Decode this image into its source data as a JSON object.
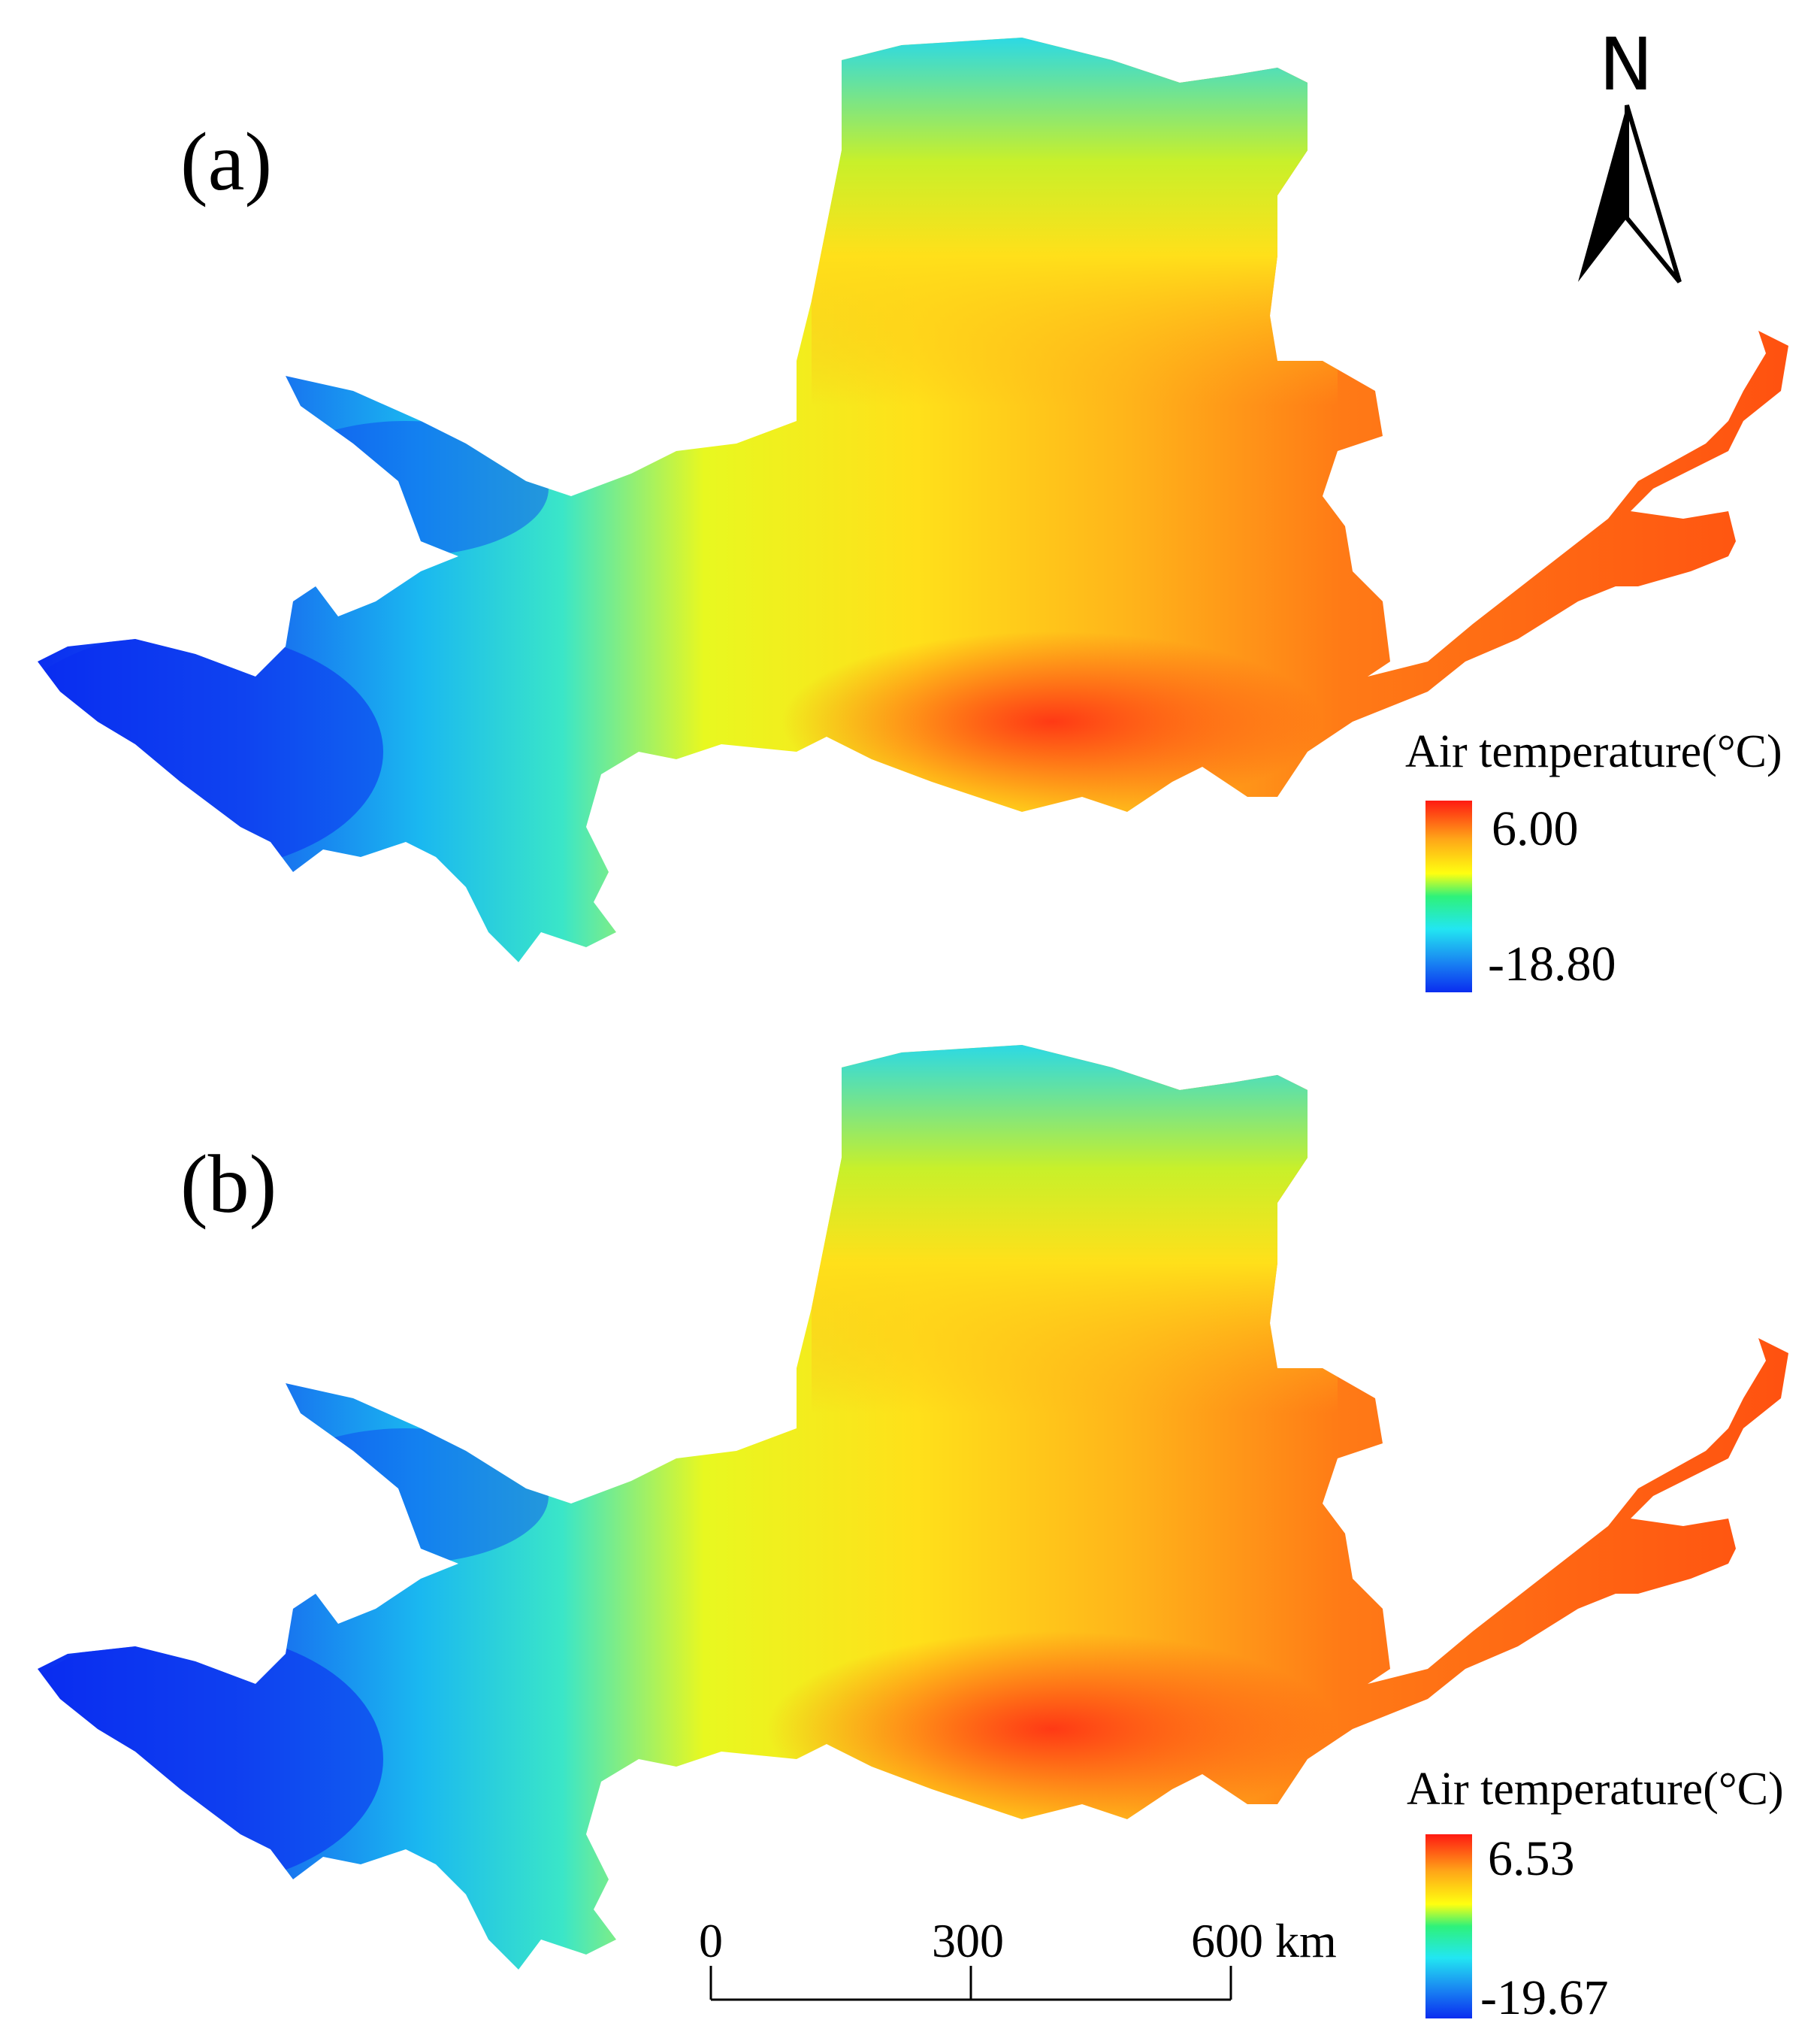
{
  "panels": [
    {
      "label": "(a)",
      "legend_title": "Air temperature(°C)",
      "legend_max": "6.00",
      "legend_min": "-18.80"
    },
    {
      "label": "(b)",
      "legend_title": "Air temperature(°C)",
      "legend_max": "6.53",
      "legend_min": "-19.67"
    }
  ],
  "north_arrow": {
    "letter": "N",
    "icon": "north-arrow-icon"
  },
  "scale_bar": {
    "labels": [
      "0",
      "300",
      "600 km"
    ]
  },
  "colormap": [
    "#0a2cf0",
    "#1a8cf2",
    "#22e6f2",
    "#2ef27a",
    "#ffff10",
    "#ffa518",
    "#ff1a12"
  ]
}
